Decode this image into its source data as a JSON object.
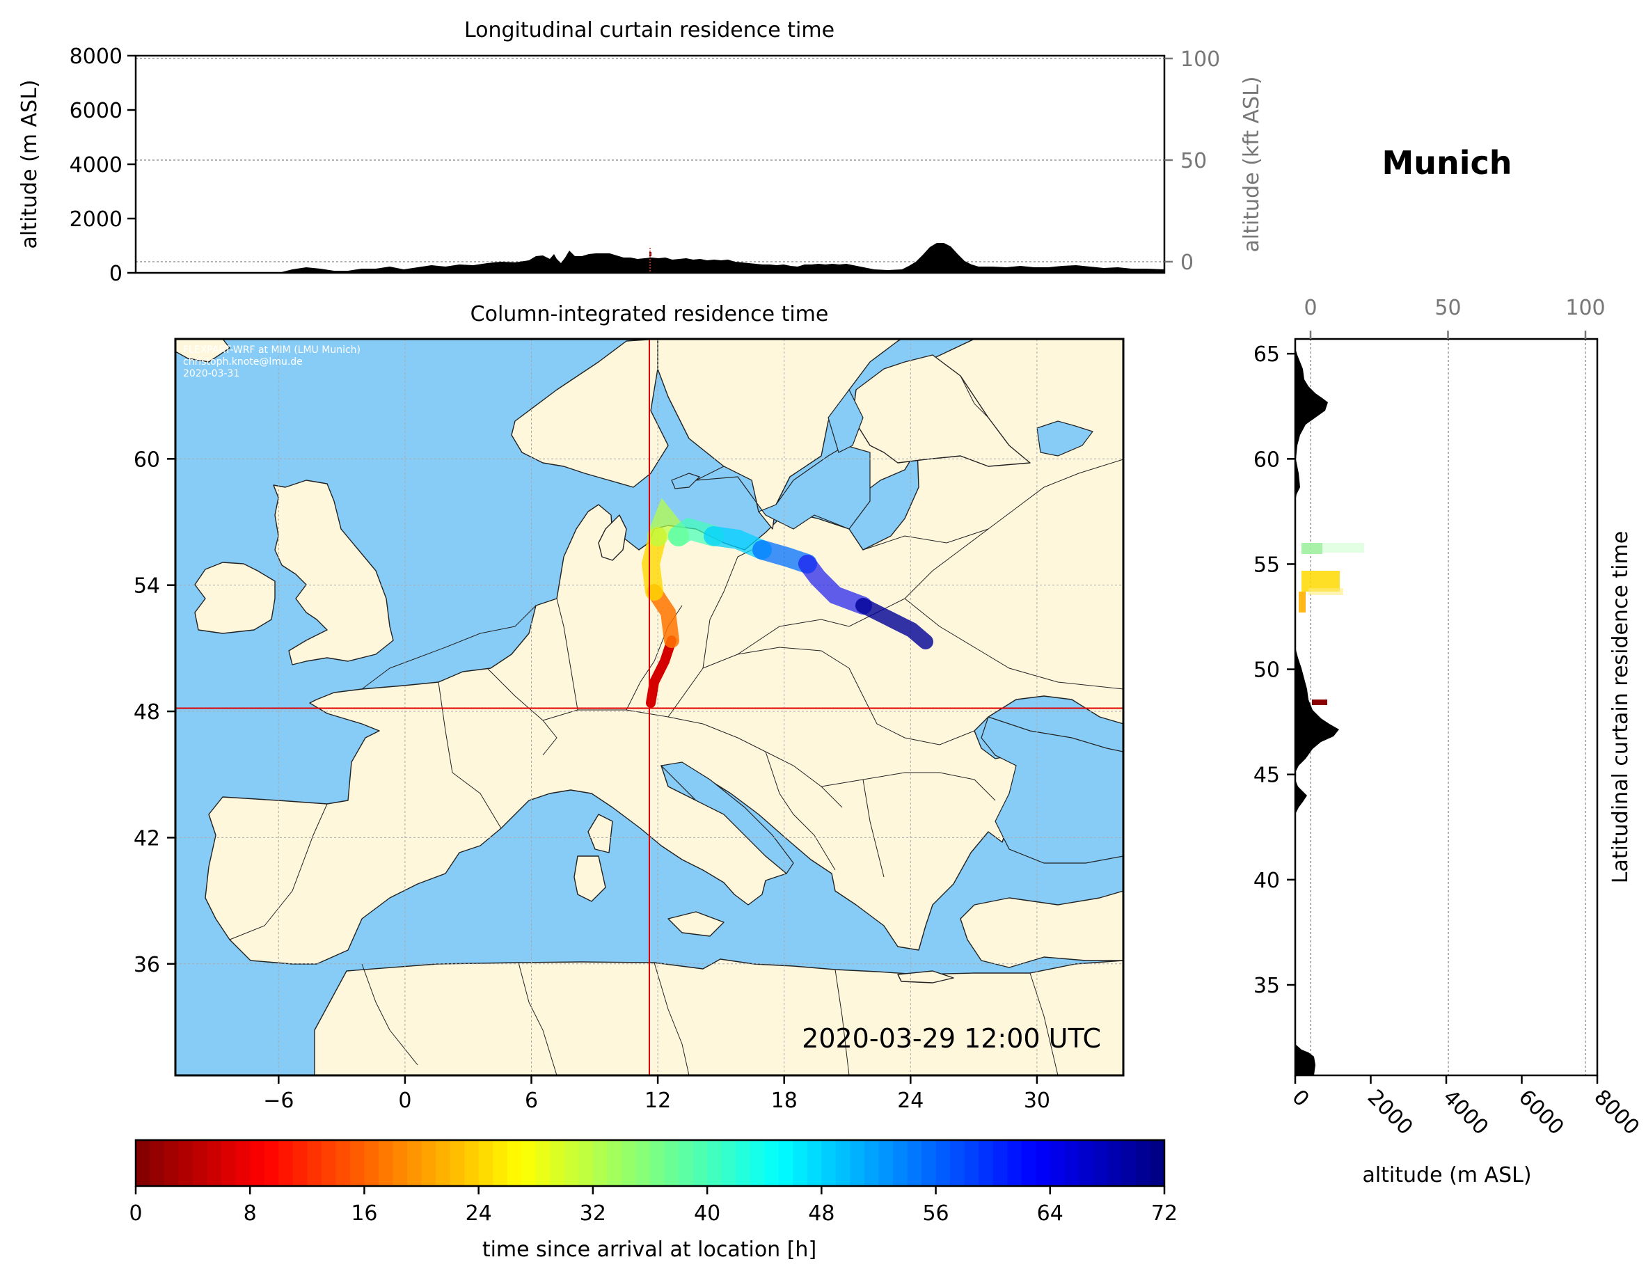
{
  "top_panel": {
    "title": "Longitudinal curtain residence time",
    "left_axis_label": "altitude (m ASL)",
    "right_axis_label": "altitude (kft ASL)",
    "left_ticks": [
      "0",
      "2000",
      "4000",
      "6000",
      "8000"
    ],
    "left_tick_values": [
      0,
      2000,
      4000,
      6000,
      8000
    ],
    "right_ticks": [
      "0",
      "50",
      "100"
    ],
    "right_tick_values": [
      0,
      50,
      100
    ],
    "ylim": [
      0,
      8000
    ]
  },
  "location_title": "Munich",
  "map_panel": {
    "title": "Column-integrated residence time",
    "credit_lines": [
      "FLEXPART-WRF at MIM (LMU Munich)",
      "christoph.knote@lmu.de",
      "2020-03-31"
    ],
    "timestamp": "2020-03-29 12:00 UTC",
    "lon_ticks": [
      "−6",
      "0",
      "6",
      "12",
      "18",
      "24",
      "30"
    ],
    "lon_tick_values": [
      -6,
      0,
      6,
      12,
      18,
      24,
      30
    ],
    "lat_ticks": [
      "36",
      "42",
      "48",
      "54",
      "60"
    ],
    "lat_tick_values": [
      36,
      42,
      48,
      54,
      60
    ],
    "lon_range": [
      -10.9,
      34.1
    ],
    "lat_range": [
      30.7,
      65.7
    ],
    "marker": {
      "lon": 11.6,
      "lat": 48.15
    },
    "colors": {
      "ocean": "#87ccf7",
      "land": "#fff7dc",
      "marker": "#e00000"
    }
  },
  "right_panel": {
    "title": "Latitudinal curtain residence time",
    "bottom_axis_label": "altitude (m ASL)",
    "bottom_ticks": [
      "0",
      "2000",
      "4000",
      "6000",
      "8000"
    ],
    "bottom_tick_values": [
      0,
      2000,
      4000,
      6000,
      8000
    ],
    "top_ticks": [
      "0",
      "50",
      "100"
    ],
    "top_tick_values": [
      0,
      50,
      100
    ],
    "lat_ticks": [
      "35",
      "40",
      "45",
      "50",
      "55",
      "60",
      "65"
    ],
    "lat_tick_values": [
      35,
      40,
      45,
      50,
      55,
      60,
      65
    ]
  },
  "colorbar": {
    "label": "time since arrival at location [h]",
    "ticks": [
      "0",
      "8",
      "16",
      "24",
      "32",
      "40",
      "48",
      "56",
      "64",
      "72"
    ],
    "tick_values": [
      0,
      8,
      16,
      24,
      32,
      40,
      48,
      56,
      64,
      72
    ],
    "range": [
      0,
      72
    ],
    "colormap": "jet_r"
  }
}
